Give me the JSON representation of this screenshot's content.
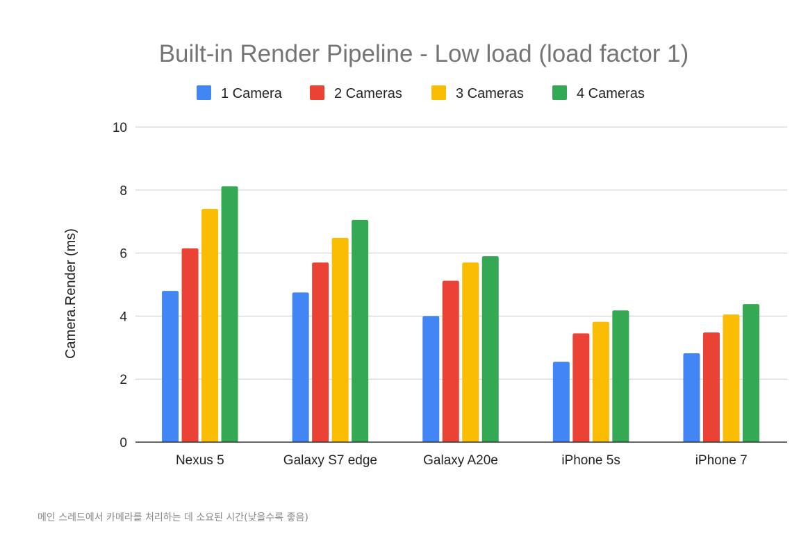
{
  "chart_data": {
    "type": "bar",
    "title": "Built-in Render Pipeline - Low load (load factor 1)",
    "xlabel": "",
    "ylabel": "Camera.Render (ms)",
    "ylim": [
      0,
      10
    ],
    "yticks": [
      "0",
      "2",
      "4",
      "6",
      "8",
      "10"
    ],
    "grid": true,
    "legend_position": "top",
    "categories": [
      "Nexus 5",
      "Galaxy S7 edge",
      "Galaxy A20e",
      "iPhone 5s",
      "iPhone 7"
    ],
    "series": [
      {
        "name": "1 Camera",
        "color": "#4285f4",
        "values": [
          4.8,
          4.75,
          4.0,
          2.55,
          2.82
        ]
      },
      {
        "name": "2 Cameras",
        "color": "#ea4335",
        "values": [
          6.15,
          5.7,
          5.12,
          3.45,
          3.48
        ]
      },
      {
        "name": "3 Cameras",
        "color": "#fbbc04",
        "values": [
          7.4,
          6.48,
          5.7,
          3.82,
          4.05
        ]
      },
      {
        "name": "4 Cameras",
        "color": "#34a853",
        "values": [
          8.12,
          7.05,
          5.9,
          4.18,
          4.38
        ]
      }
    ]
  },
  "caption": "메인 스레드에서 카메라를 처리하는 데 소요된 시간(낮을수록 좋음)"
}
